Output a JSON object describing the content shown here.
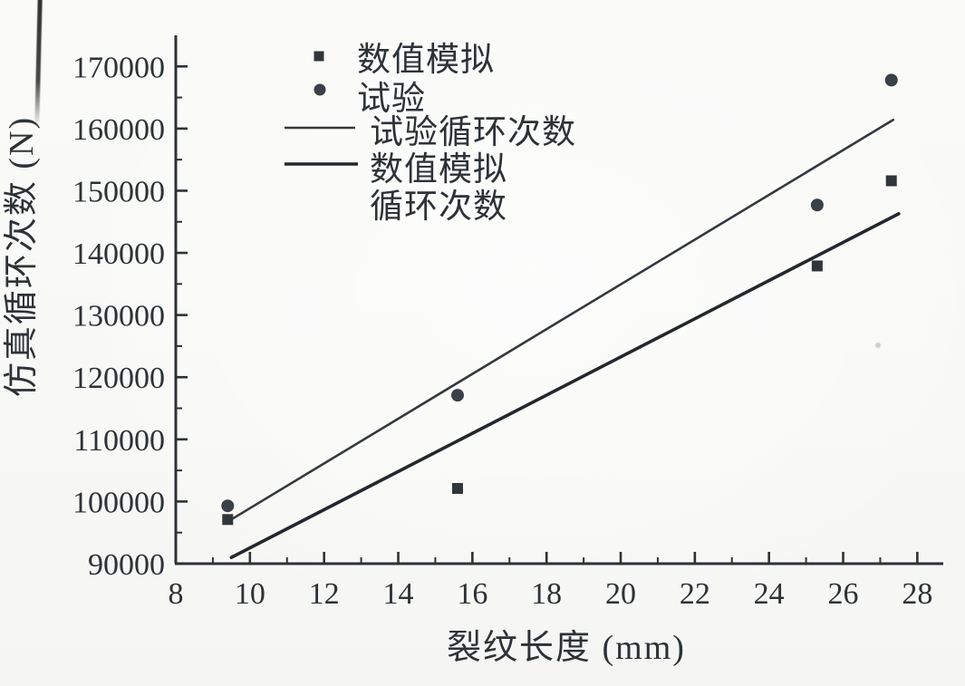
{
  "figure": {
    "background": "#fafaf8",
    "ink": "#2d3237"
  },
  "chart_data": {
    "type": "scatter",
    "title": "",
    "xlabel": "裂纹长度 (mm)",
    "ylabel": "仿真循环次数 (N)",
    "xlim": [
      8,
      28.7
    ],
    "ylim": [
      90000,
      175000
    ],
    "x_ticks": [
      8,
      10,
      12,
      14,
      16,
      18,
      20,
      22,
      24,
      26,
      28
    ],
    "x_minor_ticks": [
      9,
      11,
      13,
      15,
      17,
      19,
      21,
      23,
      25,
      27
    ],
    "y_ticks": [
      90000,
      100000,
      110000,
      120000,
      130000,
      140000,
      150000,
      160000,
      170000
    ],
    "y_minor_ticks": [
      95000,
      105000,
      115000,
      125000,
      135000,
      145000,
      155000,
      165000
    ],
    "grid": false,
    "legend_position": "upper-left-inside",
    "series": [
      {
        "name": "数值模拟",
        "kind": "scatter",
        "marker": "square",
        "color": "#31363b",
        "points": [
          [
            9.4,
            97100
          ],
          [
            15.6,
            102100
          ],
          [
            25.3,
            137900
          ],
          [
            27.3,
            151600
          ]
        ]
      },
      {
        "name": "试验",
        "kind": "scatter",
        "marker": "circle",
        "color": "#3a4047",
        "points": [
          [
            9.4,
            99300
          ],
          [
            15.6,
            117100
          ],
          [
            25.3,
            147700
          ],
          [
            27.3,
            167800
          ]
        ]
      },
      {
        "name": "试验循环次数",
        "kind": "line",
        "color": "#33383d",
        "stroke_width": 2.6,
        "points": [
          [
            9.55,
            97300
          ],
          [
            27.35,
            161400
          ]
        ]
      },
      {
        "name": "数值模拟循环次数",
        "kind": "line",
        "color": "#23282c",
        "stroke_width": 3.6,
        "points": [
          [
            9.5,
            91000
          ],
          [
            27.5,
            146300
          ]
        ]
      }
    ],
    "legend": {
      "items": [
        {
          "label": "数值模拟",
          "symbol": "square"
        },
        {
          "label": "试验",
          "symbol": "circle"
        },
        {
          "label": "试验循环次数",
          "symbol": "thin-line"
        },
        {
          "label": "数值模拟",
          "label2": "循环次数",
          "symbol": "thick-line"
        }
      ]
    }
  }
}
